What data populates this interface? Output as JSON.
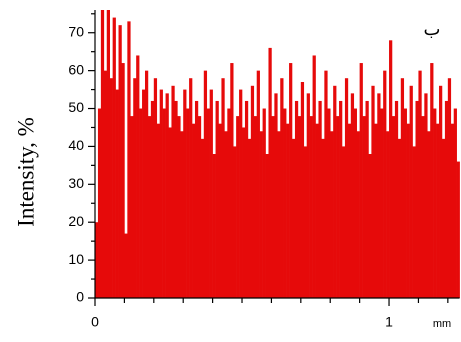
{
  "chart_data": {
    "type": "histogram",
    "annotation": "ب",
    "ylabel": "Intensity, %",
    "xunit": "mm",
    "color": "#e60a0a",
    "xlim": [
      0,
      1.24
    ],
    "ylim": [
      0,
      76
    ],
    "xticks": [
      0,
      1
    ],
    "xminorticks": [
      0.1,
      0.2,
      0.3,
      0.4,
      0.5,
      0.6,
      0.7,
      0.8,
      0.9,
      1.1,
      1.2
    ],
    "yticks": [
      0,
      10,
      20,
      30,
      40,
      50,
      60,
      70
    ],
    "yminorticks": [
      5,
      15,
      25,
      35,
      45,
      55,
      65,
      75
    ],
    "bins": [
      0,
      0.01,
      0.02,
      0.03,
      0.04,
      0.05,
      0.06,
      0.07,
      0.08,
      0.09,
      0.1,
      0.11,
      0.12,
      0.13,
      0.14,
      0.15,
      0.16,
      0.17,
      0.18,
      0.19,
      0.2,
      0.21,
      0.22,
      0.23,
      0.24,
      0.25,
      0.26,
      0.27,
      0.28,
      0.29,
      0.3,
      0.31,
      0.32,
      0.33,
      0.34,
      0.35,
      0.36,
      0.37,
      0.38,
      0.39,
      0.4,
      0.41,
      0.42,
      0.43,
      0.44,
      0.45,
      0.46,
      0.47,
      0.48,
      0.49,
      0.5,
      0.51,
      0.52,
      0.53,
      0.54,
      0.55,
      0.56,
      0.57,
      0.58,
      0.59,
      0.6,
      0.61,
      0.62,
      0.63,
      0.64,
      0.65,
      0.66,
      0.67,
      0.68,
      0.69,
      0.7,
      0.71,
      0.72,
      0.73,
      0.74,
      0.75,
      0.76,
      0.77,
      0.78,
      0.79,
      0.8,
      0.81,
      0.82,
      0.83,
      0.84,
      0.85,
      0.86,
      0.87,
      0.88,
      0.89,
      0.9,
      0.91,
      0.92,
      0.93,
      0.94,
      0.95,
      0.96,
      0.97,
      0.98,
      0.99,
      1,
      1.01,
      1.02,
      1.03,
      1.04,
      1.05,
      1.06,
      1.07,
      1.08,
      1.09,
      1.1,
      1.11,
      1.12,
      1.13,
      1.14,
      1.15,
      1.16,
      1.17,
      1.18,
      1.19,
      1.2,
      1.21,
      1.22,
      1.23,
      1.24
    ],
    "values": [
      20,
      50,
      76,
      60,
      76,
      58,
      74,
      55,
      72,
      62,
      17,
      73,
      48,
      58,
      64,
      50,
      55,
      60,
      48,
      52,
      58,
      46,
      55,
      50,
      54,
      45,
      56,
      52,
      48,
      44,
      55,
      50,
      58,
      46,
      52,
      48,
      42,
      60,
      50,
      55,
      38,
      52,
      46,
      58,
      44,
      50,
      62,
      40,
      48,
      55,
      45,
      52,
      42,
      56,
      48,
      60,
      44,
      50,
      38,
      66,
      48,
      54,
      44,
      58,
      50,
      46,
      62,
      42,
      52,
      48,
      57,
      40,
      54,
      48,
      64,
      46,
      52,
      42,
      60,
      50,
      44,
      56,
      48,
      52,
      40,
      58,
      46,
      54,
      50,
      44,
      62,
      48,
      52,
      38,
      56,
      46,
      54,
      50,
      60,
      44,
      68,
      48,
      52,
      42,
      58,
      50,
      46,
      56,
      40,
      52,
      60,
      48,
      54,
      44,
      62,
      50,
      46,
      56,
      42,
      52,
      58,
      46,
      50,
      36
    ]
  }
}
